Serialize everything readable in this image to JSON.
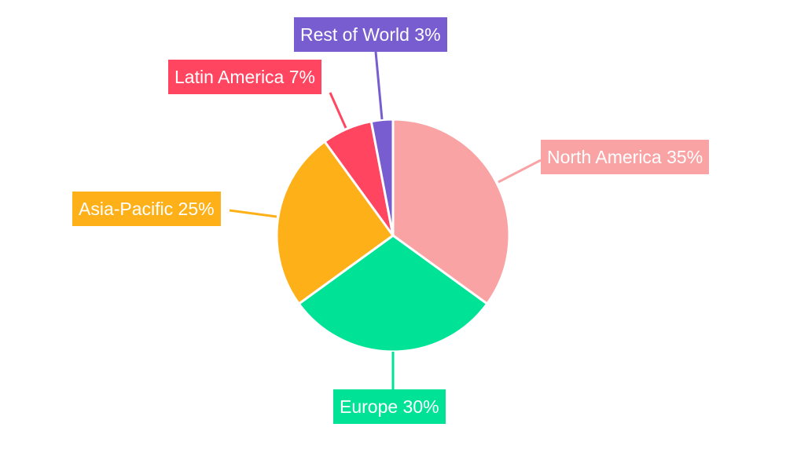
{
  "chart_data": {
    "type": "pie",
    "categories": [
      "North America",
      "Europe",
      "Asia-Pacific",
      "Latin America",
      "Rest of World"
    ],
    "values": [
      35,
      30,
      25,
      7,
      3
    ],
    "labels": [
      "North America 35%",
      "Europe 30%",
      "Asia-Pacific 25%",
      "Latin America 7%",
      "Rest of World 3%"
    ],
    "colors": [
      "#F9A3A4",
      "#00E396",
      "#FEB019",
      "#FF4560",
      "#775DD0"
    ],
    "start_angle": "top, clockwise",
    "legend": "none"
  }
}
